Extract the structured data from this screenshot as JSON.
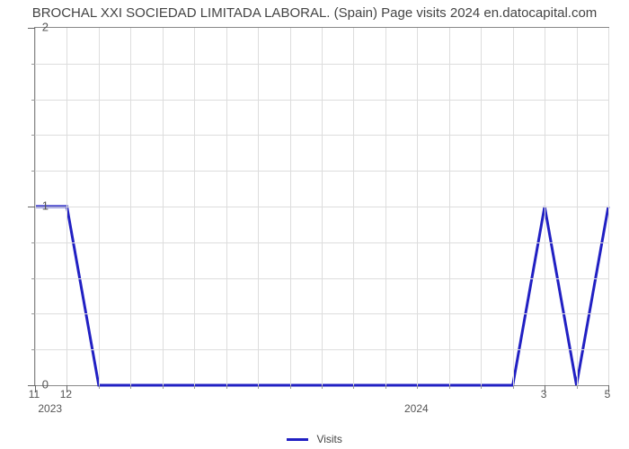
{
  "chart": {
    "type": "line",
    "title": "BROCHAL XXI SOCIEDAD LIMITADA LABORAL. (Spain) Page visits 2024 en.datocapital.com",
    "title_fontsize": 15,
    "title_color": "#444444",
    "background_color": "#ffffff",
    "plot_border_color": "#888888",
    "grid_color": "#dddddd",
    "line_color": "#2120c3",
    "line_width": 3,
    "y": {
      "min": 0,
      "max": 2,
      "major_ticks": [
        0,
        1,
        2
      ],
      "minor_tick_count_between": 4,
      "label_fontsize": 13,
      "label_color": "#555555"
    },
    "x": {
      "n_points": 19,
      "major_labels": [
        "11",
        "12",
        "3",
        "5"
      ],
      "major_positions": [
        0,
        1,
        16,
        18
      ],
      "group_labels": [
        "2023",
        "2024"
      ],
      "group_positions": [
        0.5,
        12
      ],
      "label_fontsize": 12,
      "label_color": "#555555"
    },
    "series": [
      {
        "name": "Visits",
        "values": [
          1,
          1,
          0,
          0,
          0,
          0,
          0,
          0,
          0,
          0,
          0,
          0,
          0,
          0,
          0,
          0,
          1,
          0,
          1
        ]
      }
    ],
    "legend": {
      "label": "Visits",
      "position": "bottom-center",
      "swatch_color": "#2120c3"
    }
  }
}
